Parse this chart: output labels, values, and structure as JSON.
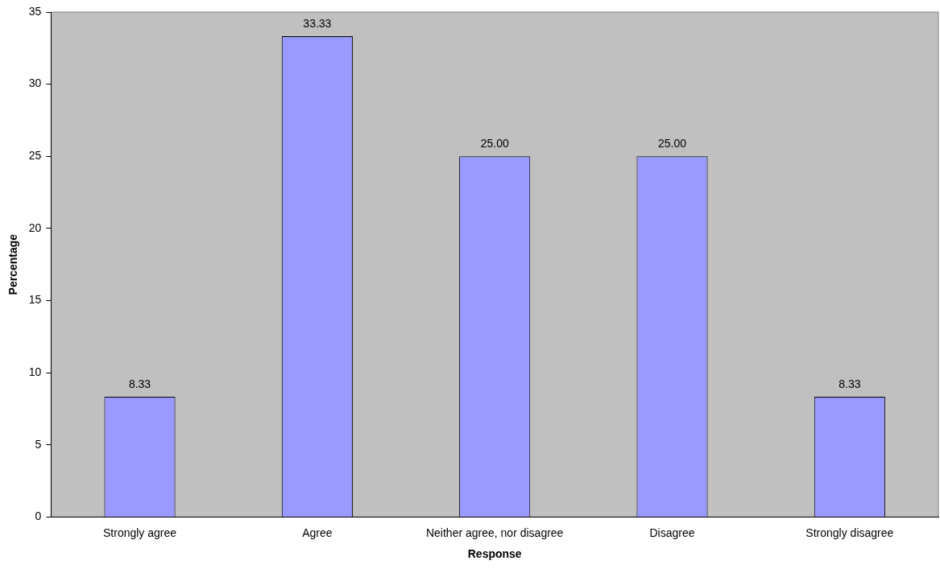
{
  "chart_data": {
    "type": "bar",
    "xlabel": "Response",
    "ylabel": "Percentage",
    "categories": [
      "Strongly agree",
      "Agree",
      "Neither agree, nor disagree",
      "Disagree",
      "Strongly disagree"
    ],
    "values": [
      8.33,
      33.33,
      25,
      25,
      8.33
    ],
    "value_labels": [
      "8.33",
      "33.33",
      "25.00",
      "25.00",
      "8.33"
    ],
    "color": "#9999ff",
    "ylim": [
      0,
      35
    ],
    "yticks": [
      0,
      5,
      10,
      15,
      20,
      25,
      30,
      35
    ],
    "grid": false,
    "legend": false
  }
}
